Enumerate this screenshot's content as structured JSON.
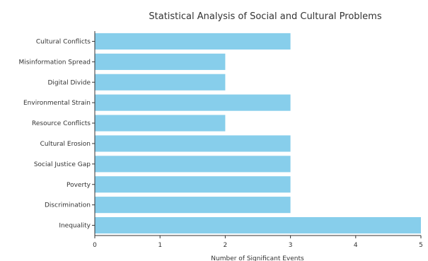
{
  "chart_data": {
    "type": "bar",
    "orientation": "horizontal",
    "title": "Statistical Analysis of Social and Cultural Problems",
    "xlabel": "Number of Significant Events",
    "ylabel": "",
    "categories": [
      "Inequality",
      "Discrimination",
      "Poverty",
      "Social Justice Gap",
      "Cultural Erosion",
      "Resource Conflicts",
      "Environmental Strain",
      "Digital Divide",
      "Misinformation Spread",
      "Cultural Conflicts"
    ],
    "values": [
      5,
      3,
      3,
      3,
      3,
      2,
      3,
      2,
      2,
      3
    ],
    "xlim": [
      0,
      5
    ],
    "xticks": [
      "0",
      "1",
      "2",
      "3",
      "4",
      "5"
    ],
    "bar_color": "#87ceeb",
    "grid": false,
    "legend": "none"
  }
}
